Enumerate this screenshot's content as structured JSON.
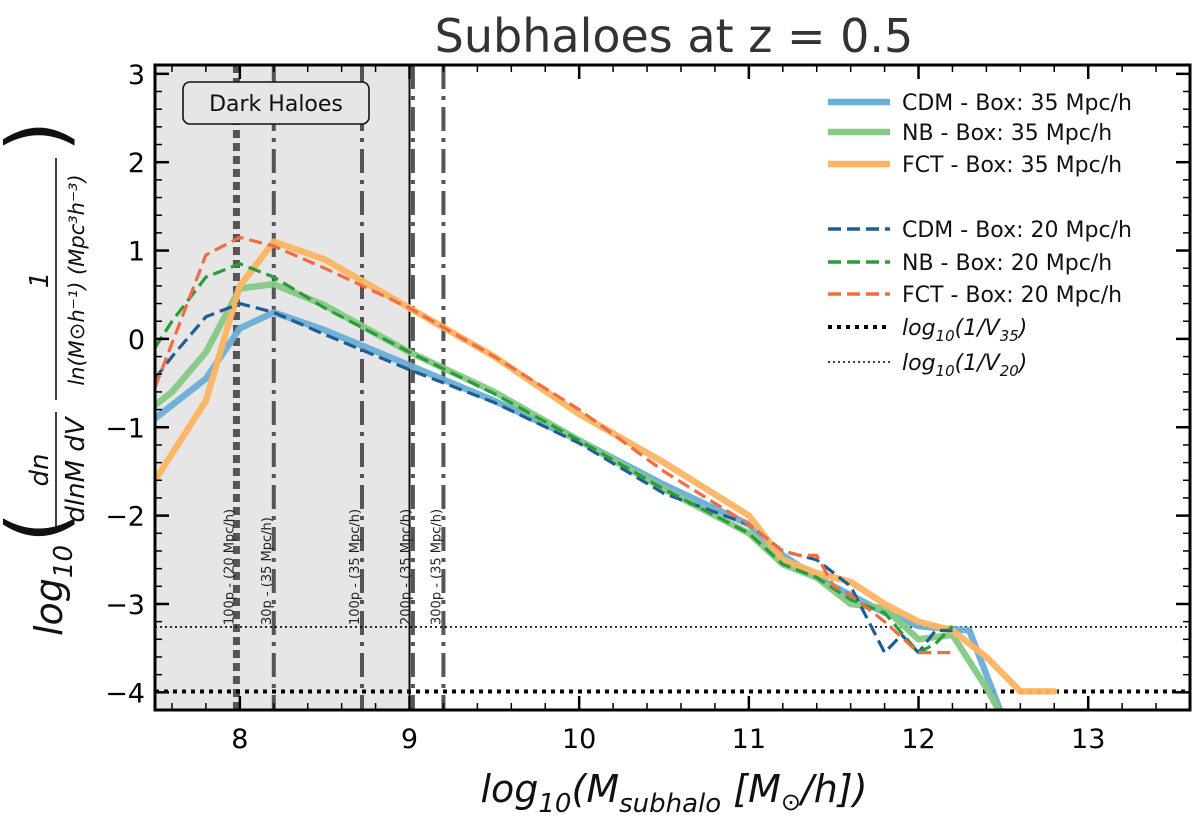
{
  "chart_data": {
    "type": "line",
    "title": "Subhaloes at z = 0.5",
    "xlabel": "log₁₀(M_subhalo [M⊙/h])",
    "ylabel": "log₁₀( dn / (dlnM dV) · 1 / (ln(M⊙h⁻¹) (Mpc³h⁻³)) )",
    "ylabel_parts": {
      "prefix": "log",
      "sub": "10",
      "frac1_num": "dn",
      "frac1_den": "dlnM dV",
      "frac2_num": "1",
      "frac2_den": "ln(M⊙h⁻¹) (Mpc³h⁻³)"
    },
    "xlabel_parts": {
      "prefix": "log",
      "sub": "10",
      "open": "(",
      "M": "M",
      "Msub": "subhalo",
      "unit_open": " [",
      "unit_M": "M",
      "unit_sun": "⊙",
      "unit_rest": "/h])"
    },
    "xlim": [
      7.5,
      13.6
    ],
    "ylim": [
      -4.2,
      3.1
    ],
    "xticks": [
      8,
      9,
      10,
      11,
      12,
      13
    ],
    "xtick_labels": [
      "8",
      "9",
      "10",
      "11",
      "12",
      "13"
    ],
    "yticks": [
      -4,
      -3,
      -2,
      -1,
      0,
      1,
      2,
      3
    ],
    "ytick_labels": [
      "−4",
      "−3",
      "−2",
      "−1",
      "0",
      "1",
      "2",
      "3"
    ],
    "shaded_region": {
      "x_from": 7.5,
      "x_to": 9.0,
      "label": "Dark Haloes",
      "color": "#e6e6e6"
    },
    "vertical_lines": [
      {
        "x": 7.98,
        "style": "dotted-thick",
        "label": "100p - (20 Mpc/h)"
      },
      {
        "x": 8.2,
        "style": "dashdot",
        "label": "30p  - (35 Mpc/h)"
      },
      {
        "x": 8.72,
        "style": "dashdot",
        "label": "100p - (35 Mpc/h)"
      },
      {
        "x": 9.02,
        "style": "dashdot",
        "label": "200p - (35 Mpc/h)"
      },
      {
        "x": 9.2,
        "style": "dashdot",
        "label": "300p - (35 Mpc/h)"
      }
    ],
    "horizontal_lines": [
      {
        "y": -3.99,
        "style": "dotted-thick",
        "label": "log10(1/V35)"
      },
      {
        "y": -3.26,
        "style": "dotted-thin",
        "label": "log10(1/V20)"
      }
    ],
    "series": [
      {
        "name": "CDM - Box: 35 Mpc/h",
        "color": "#6aaed6",
        "style": "solid",
        "x": [
          7.5,
          7.6,
          7.8,
          8.0,
          8.2,
          8.5,
          9.0,
          9.5,
          10.0,
          10.5,
          11.0,
          11.2,
          11.4,
          11.6,
          11.8,
          12.0,
          12.1,
          12.3,
          12.5
        ],
        "y": [
          -0.9,
          -0.75,
          -0.45,
          0.12,
          0.3,
          0.1,
          -0.3,
          -0.7,
          -1.15,
          -1.65,
          -2.1,
          -2.45,
          -2.7,
          -2.9,
          -3.1,
          -3.25,
          -3.27,
          -3.3,
          -4.3
        ]
      },
      {
        "name": "NB - Box: 35 Mpc/h",
        "color": "#86c985",
        "style": "solid",
        "x": [
          7.5,
          7.6,
          7.8,
          8.0,
          8.2,
          8.5,
          9.0,
          9.5,
          10.0,
          10.5,
          11.0,
          11.2,
          11.4,
          11.6,
          11.8,
          12.0,
          12.2,
          12.4,
          12.5
        ],
        "y": [
          -0.75,
          -0.6,
          -0.15,
          0.57,
          0.62,
          0.38,
          -0.15,
          -0.6,
          -1.15,
          -1.7,
          -2.2,
          -2.55,
          -2.7,
          -3.0,
          -3.05,
          -3.4,
          -3.35,
          -3.95,
          -4.3
        ]
      },
      {
        "name": "FCT - Box: 35 Mpc/h",
        "color": "#fdb462",
        "style": "solid",
        "x": [
          7.5,
          7.65,
          7.8,
          8.0,
          8.2,
          8.5,
          9.0,
          9.5,
          10.0,
          10.5,
          11.0,
          11.2,
          11.4,
          11.6,
          11.8,
          12.0,
          12.2,
          12.4,
          12.6,
          12.8
        ],
        "y": [
          -1.6,
          -1.15,
          -0.7,
          0.6,
          1.1,
          0.9,
          0.35,
          -0.2,
          -0.85,
          -1.4,
          -2.0,
          -2.5,
          -2.65,
          -2.75,
          -3.0,
          -3.2,
          -3.3,
          -3.6,
          -3.99,
          -3.99
        ]
      },
      {
        "name": "CDM - Box: 20 Mpc/h",
        "color": "#1f5d96",
        "style": "dashed",
        "x": [
          7.5,
          7.6,
          7.8,
          8.0,
          8.2,
          8.5,
          9.0,
          9.5,
          10.0,
          10.5,
          11.0,
          11.2,
          11.4,
          11.6,
          11.8,
          11.9,
          12.0,
          12.1,
          12.2
        ],
        "y": [
          -0.45,
          -0.2,
          0.25,
          0.4,
          0.3,
          0.05,
          -0.35,
          -0.72,
          -1.18,
          -1.75,
          -2.1,
          -2.4,
          -2.5,
          -2.8,
          -3.55,
          -3.35,
          -3.55,
          -3.3,
          -3.3
        ]
      },
      {
        "name": "NB - Box: 20 Mpc/h",
        "color": "#2a9d3a",
        "style": "dashed",
        "x": [
          7.5,
          7.6,
          7.8,
          8.0,
          8.2,
          8.5,
          9.0,
          9.5,
          10.0,
          10.5,
          11.0,
          11.2,
          11.4,
          11.6,
          11.8,
          12.0,
          12.1,
          12.2
        ],
        "y": [
          -0.1,
          0.2,
          0.7,
          0.85,
          0.7,
          0.35,
          -0.15,
          -0.62,
          -1.15,
          -1.7,
          -2.2,
          -2.55,
          -2.7,
          -2.95,
          -3.1,
          -3.55,
          -3.45,
          -3.25
        ]
      },
      {
        "name": "FCT - Box: 20 Mpc/h",
        "color": "#f06d43",
        "style": "dashed",
        "x": [
          7.5,
          7.6,
          7.8,
          8.0,
          8.2,
          8.5,
          9.0,
          9.5,
          10.0,
          10.5,
          11.0,
          11.2,
          11.3,
          11.4,
          11.5,
          11.6,
          11.8,
          12.0,
          12.2
        ],
        "y": [
          -0.55,
          -0.05,
          0.95,
          1.15,
          1.05,
          0.8,
          0.35,
          -0.2,
          -0.8,
          -1.5,
          -2.1,
          -2.4,
          -2.45,
          -2.45,
          -2.8,
          -2.9,
          -3.2,
          -3.55,
          -3.55
        ]
      }
    ],
    "legend": {
      "placement": "top-right",
      "entries": [
        {
          "label": "CDM - Box: 35 Mpc/h",
          "color": "#6aaed6",
          "style": "solid"
        },
        {
          "label": "NB - Box: 35 Mpc/h",
          "color": "#86c985",
          "style": "solid"
        },
        {
          "label": "FCT - Box: 35 Mpc/h",
          "color": "#fdb462",
          "style": "solid"
        },
        {
          "label": "CDM - Box: 20 Mpc/h",
          "color": "#1f5d96",
          "style": "dashed"
        },
        {
          "label": "NB - Box: 20 Mpc/h",
          "color": "#2a9d3a",
          "style": "dashed"
        },
        {
          "label": "FCT - Box: 20 Mpc/h",
          "color": "#f06d43",
          "style": "dashed"
        }
      ],
      "hline_entries": [
        {
          "prefix": "log",
          "sub": "10",
          "text": "(1/V",
          "vsub": "35",
          "close": ")",
          "style": "dotted-thick"
        },
        {
          "prefix": "log",
          "sub": "10",
          "text": "(1/V",
          "vsub": "20",
          "close": ")",
          "style": "dotted-thin"
        }
      ]
    }
  }
}
